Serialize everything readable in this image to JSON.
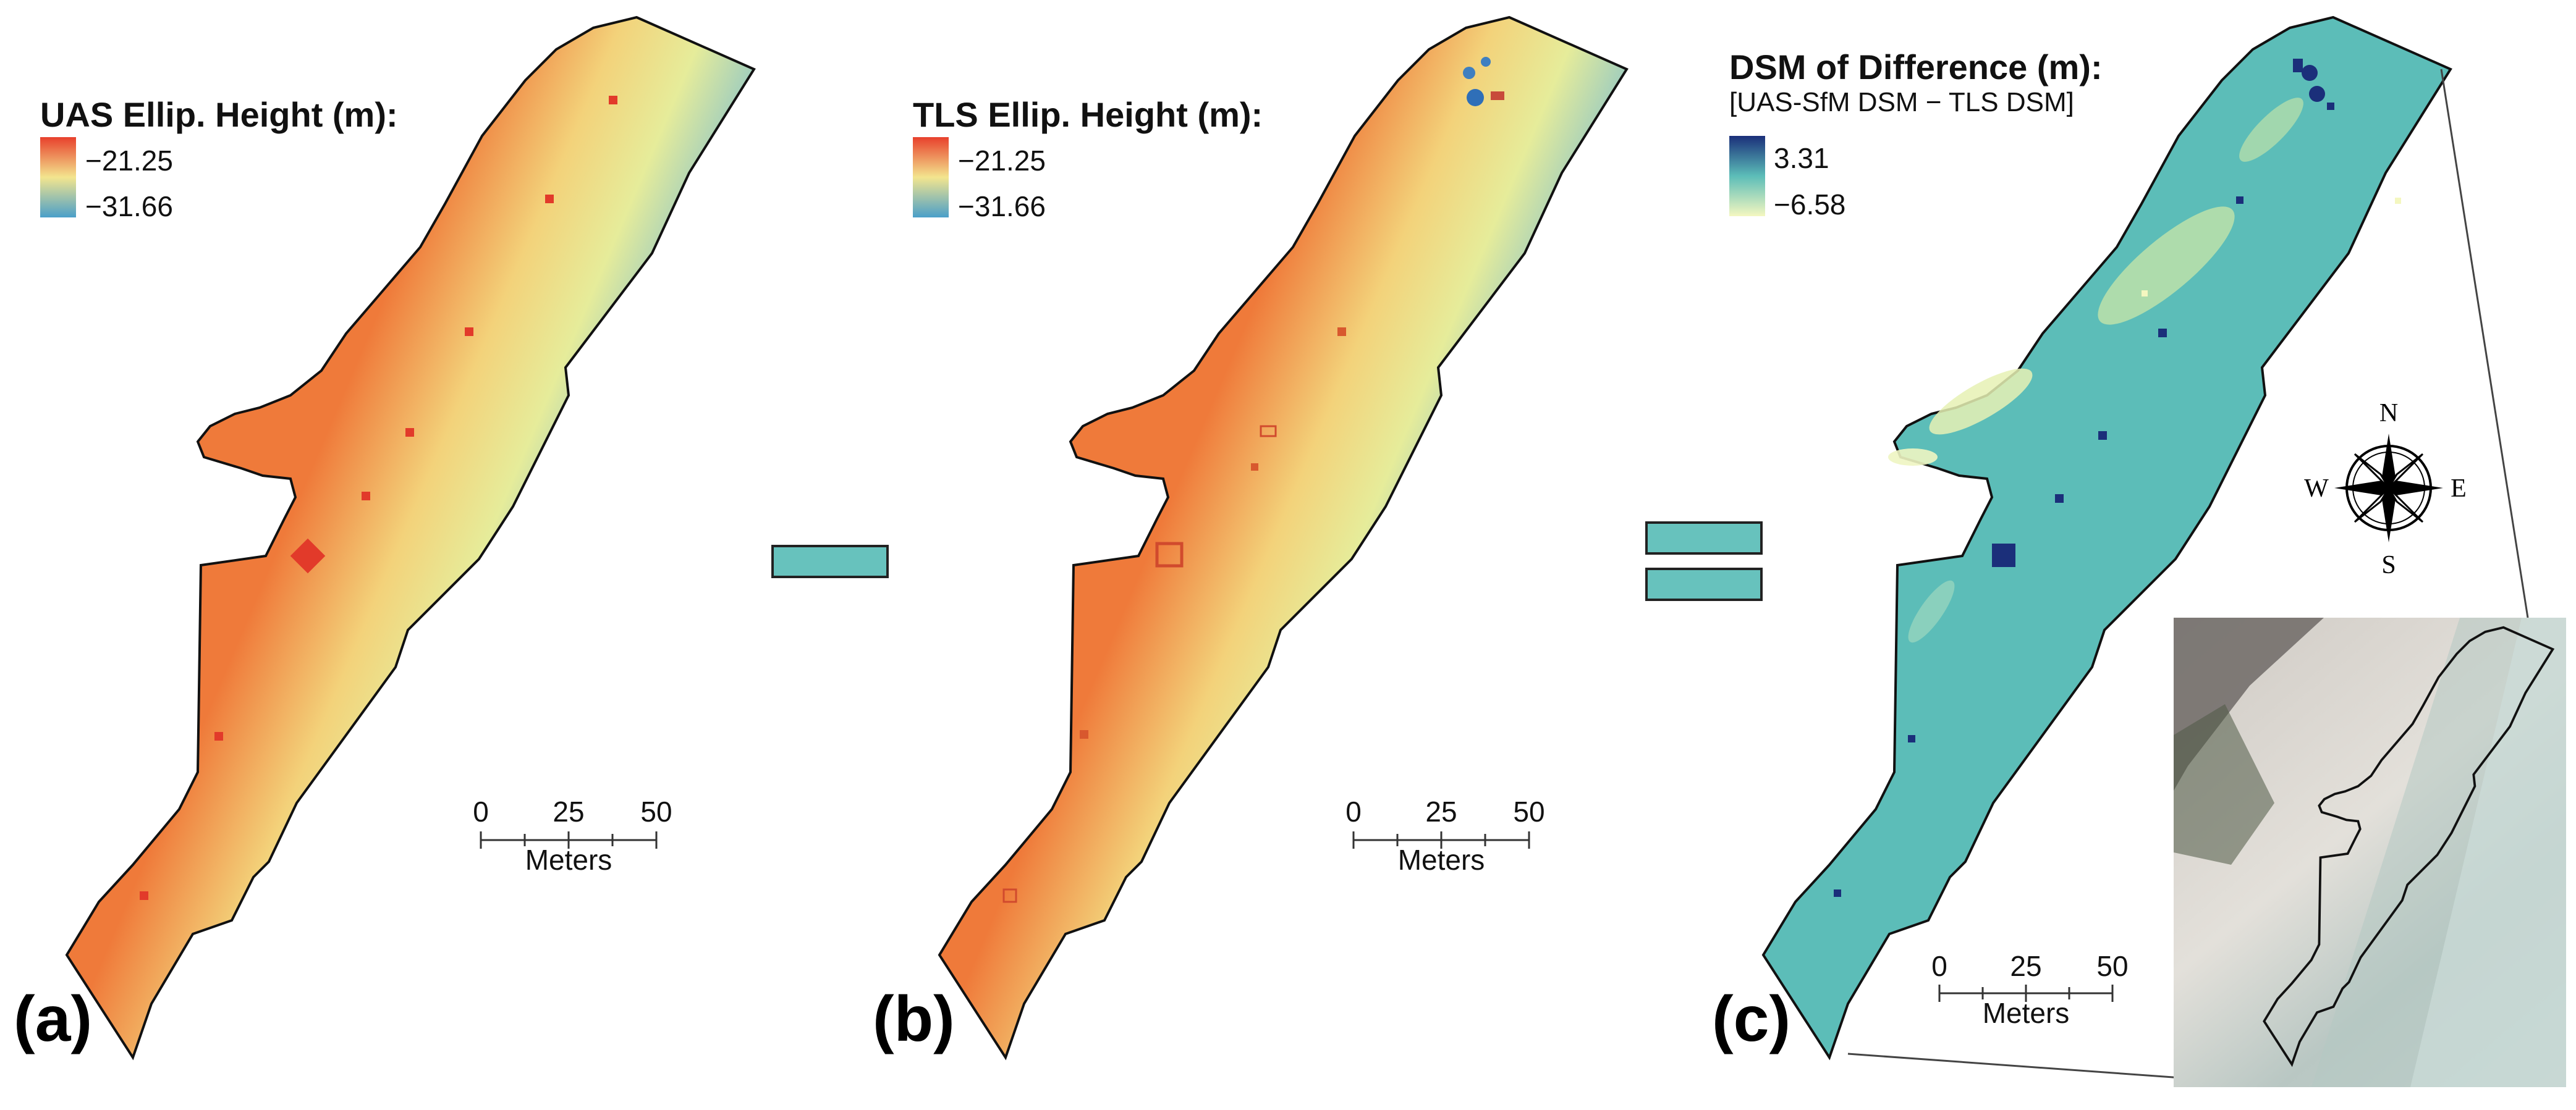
{
  "figure": {
    "panels": [
      {
        "id": "a",
        "label": "(a)",
        "legend_title": "UAS Ellip. Height (m):",
        "legend_max": "−21.25",
        "legend_min": "−31.66",
        "scale_ticks": [
          "0",
          "25",
          "50"
        ],
        "scale_unit": "Meters"
      },
      {
        "id": "b",
        "label": "(b)",
        "legend_title": "TLS Ellip. Height (m):",
        "legend_max": "−21.25",
        "legend_min": "−31.66",
        "scale_ticks": [
          "0",
          "25",
          "50"
        ],
        "scale_unit": "Meters"
      },
      {
        "id": "c",
        "label": "(c)",
        "legend_title": "DSM of Difference (m):",
        "legend_subtitle": "[UAS-SfM DSM − TLS DSM]",
        "legend_max": "3.31",
        "legend_min": "−6.58",
        "scale_ticks": [
          "0",
          "25",
          "50"
        ],
        "scale_unit": "Meters"
      }
    ],
    "operators": {
      "minus": "minus-sign",
      "equals": "equals-sign"
    },
    "compass": {
      "north": "N",
      "south": "S",
      "east": "E",
      "west": "W"
    },
    "colors": {
      "elev_high": "#e8402c",
      "elev_mid": "#f3e58e",
      "elev_low": "#4a9fc9",
      "diff_high": "#1a2f7a",
      "diff_low": "#f4f7c0",
      "diff_fill": "#5cbdb8",
      "operator_fill": "#67c2bd"
    }
  }
}
